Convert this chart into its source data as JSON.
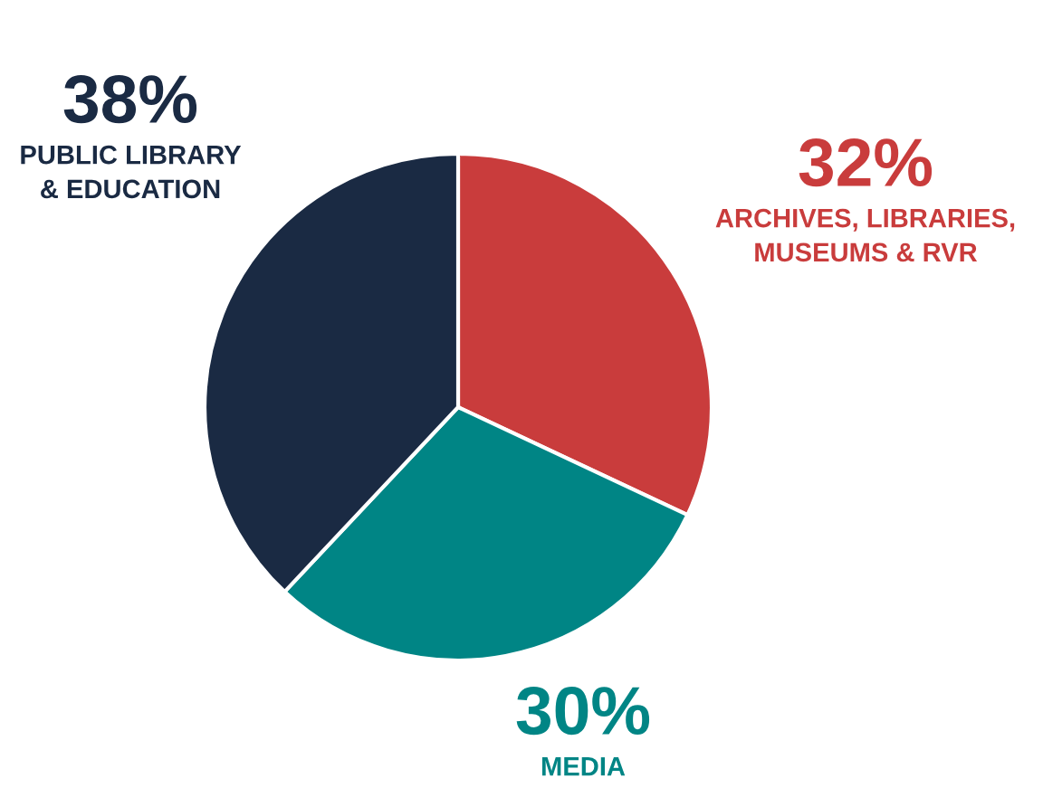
{
  "chart_data": {
    "type": "pie",
    "categories": [
      "ARCHIVES, LIBRARIES,\nMUSEUMS & RVR",
      "MEDIA",
      "PUBLIC LIBRARY\n& EDUCATION"
    ],
    "values": [
      32,
      30,
      38
    ],
    "colors": [
      "#c93c3c",
      "#008585",
      "#1a2a43"
    ],
    "value_labels": [
      "32%",
      "30%",
      "38%"
    ],
    "legend": false
  }
}
